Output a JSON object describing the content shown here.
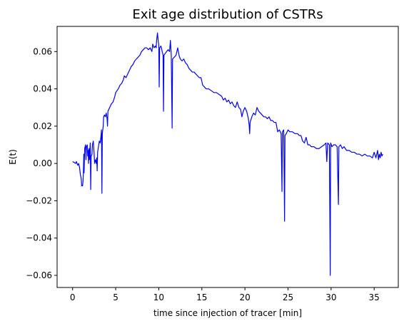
{
  "chart_data": {
    "type": "line",
    "title": "Exit age distribution of CSTRs",
    "xlabel": "time since injection of tracer [min]",
    "ylabel": "E(t)",
    "xlim": [
      -1.8,
      37.8
    ],
    "ylim": [
      -0.0665,
      0.0735
    ],
    "xticks": [
      0,
      5,
      10,
      15,
      20,
      25,
      30,
      35
    ],
    "yticks": [
      -0.06,
      -0.04,
      -0.02,
      0.0,
      0.02,
      0.04,
      0.06
    ],
    "xtick_labels": [
      "0",
      "5",
      "10",
      "15",
      "20",
      "25",
      "30",
      "35"
    ],
    "ytick_labels": [
      "−0.06",
      "−0.04",
      "−0.02",
      "0.00",
      "0.02",
      "0.04",
      "0.06"
    ],
    "grid": false,
    "series": [
      {
        "color": "#0000ff",
        "points": [
          [
            0.0,
            0.001
          ],
          [
            0.2,
            0.0005
          ],
          [
            0.35,
            0.0
          ],
          [
            0.45,
            0.001
          ],
          [
            0.55,
            -0.0005
          ],
          [
            0.6,
            -0.001
          ],
          [
            0.7,
            0.0
          ],
          [
            0.8,
            -0.002
          ],
          [
            0.9,
            -0.006
          ],
          [
            1.0,
            -0.008
          ],
          [
            1.05,
            -0.012
          ],
          [
            1.15,
            -0.012
          ],
          [
            1.2,
            -0.01
          ],
          [
            1.25,
            -0.005
          ],
          [
            1.3,
            0.005
          ],
          [
            1.33,
            -0.005
          ],
          [
            1.4,
            0.008
          ],
          [
            1.5,
            0.01
          ],
          [
            1.55,
            0.002
          ],
          [
            1.6,
            0.009
          ],
          [
            1.7,
            0.01
          ],
          [
            1.75,
            0.004
          ],
          [
            1.8,
            0.007
          ],
          [
            1.85,
            0.0
          ],
          [
            1.9,
            0.008
          ],
          [
            1.95,
            0.002
          ],
          [
            2.0,
            0.007
          ],
          [
            2.05,
            0.011
          ],
          [
            2.1,
            -0.014
          ],
          [
            2.15,
            0.004
          ],
          [
            2.25,
            0.005
          ],
          [
            2.3,
            0.01
          ],
          [
            2.4,
            0.012
          ],
          [
            2.5,
            0.005
          ],
          [
            2.55,
            0.0
          ],
          [
            2.65,
            0.002
          ],
          [
            2.75,
            0.0
          ],
          [
            2.8,
            0.003
          ],
          [
            2.85,
            -0.004
          ],
          [
            2.9,
            0.006
          ],
          [
            3.0,
            0.009
          ],
          [
            3.1,
            0.012
          ],
          [
            3.2,
            0.011
          ],
          [
            3.3,
            0.015
          ],
          [
            3.35,
            0.018
          ],
          [
            3.4,
            -0.016
          ],
          [
            3.45,
            0.016
          ],
          [
            3.55,
            0.02
          ],
          [
            3.6,
            0.025
          ],
          [
            3.7,
            0.026
          ],
          [
            3.8,
            0.025
          ],
          [
            3.9,
            0.027
          ],
          [
            4.0,
            0.024
          ],
          [
            4.05,
            0.02
          ],
          [
            4.1,
            0.028
          ],
          [
            4.3,
            0.03
          ],
          [
            4.5,
            0.032
          ],
          [
            4.7,
            0.033
          ],
          [
            4.9,
            0.036
          ],
          [
            5.0,
            0.038
          ],
          [
            5.3,
            0.04
          ],
          [
            5.5,
            0.042
          ],
          [
            5.7,
            0.043
          ],
          [
            5.9,
            0.045
          ],
          [
            6.0,
            0.047
          ],
          [
            6.2,
            0.046
          ],
          [
            6.4,
            0.048
          ],
          [
            6.6,
            0.05
          ],
          [
            6.8,
            0.052
          ],
          [
            7.0,
            0.053
          ],
          [
            7.2,
            0.055
          ],
          [
            7.4,
            0.056
          ],
          [
            7.6,
            0.057
          ],
          [
            7.8,
            0.058
          ],
          [
            8.0,
            0.06
          ],
          [
            8.2,
            0.061
          ],
          [
            8.4,
            0.062
          ],
          [
            8.6,
            0.062
          ],
          [
            8.8,
            0.061
          ],
          [
            9.0,
            0.062
          ],
          [
            9.2,
            0.06
          ],
          [
            9.3,
            0.064
          ],
          [
            9.45,
            0.062
          ],
          [
            9.6,
            0.063
          ],
          [
            9.7,
            0.062
          ],
          [
            9.75,
            0.066
          ],
          [
            9.85,
            0.07
          ],
          [
            9.95,
            0.065
          ],
          [
            10.0,
            0.064
          ],
          [
            10.05,
            0.041
          ],
          [
            10.1,
            0.062
          ],
          [
            10.25,
            0.063
          ],
          [
            10.4,
            0.06
          ],
          [
            10.5,
            0.058
          ],
          [
            10.55,
            0.028
          ],
          [
            10.6,
            0.058
          ],
          [
            10.75,
            0.059
          ],
          [
            10.9,
            0.06
          ],
          [
            11.1,
            0.061
          ],
          [
            11.25,
            0.06
          ],
          [
            11.35,
            0.066
          ],
          [
            11.45,
            0.058
          ],
          [
            11.55,
            0.019
          ],
          [
            11.6,
            0.056
          ],
          [
            11.8,
            0.057
          ],
          [
            12.0,
            0.058
          ],
          [
            12.2,
            0.062
          ],
          [
            12.35,
            0.058
          ],
          [
            12.5,
            0.056
          ],
          [
            12.7,
            0.055
          ],
          [
            12.9,
            0.056
          ],
          [
            13.1,
            0.054
          ],
          [
            13.3,
            0.053
          ],
          [
            13.5,
            0.051
          ],
          [
            13.7,
            0.05
          ],
          [
            13.9,
            0.049
          ],
          [
            14.1,
            0.049
          ],
          [
            14.3,
            0.048
          ],
          [
            14.5,
            0.047
          ],
          [
            14.7,
            0.046
          ],
          [
            14.9,
            0.046
          ],
          [
            15.1,
            0.042
          ],
          [
            15.3,
            0.041
          ],
          [
            15.5,
            0.04
          ],
          [
            15.8,
            0.04
          ],
          [
            16.1,
            0.039
          ],
          [
            16.4,
            0.038
          ],
          [
            16.7,
            0.038
          ],
          [
            17.0,
            0.037
          ],
          [
            17.3,
            0.036
          ],
          [
            17.5,
            0.034
          ],
          [
            17.7,
            0.035
          ],
          [
            17.9,
            0.033
          ],
          [
            18.1,
            0.034
          ],
          [
            18.3,
            0.032
          ],
          [
            18.5,
            0.033
          ],
          [
            18.7,
            0.031
          ],
          [
            18.9,
            0.03
          ],
          [
            19.1,
            0.033
          ],
          [
            19.3,
            0.03
          ],
          [
            19.5,
            0.029
          ],
          [
            19.65,
            0.025
          ],
          [
            19.8,
            0.028
          ],
          [
            20.0,
            0.03
          ],
          [
            20.2,
            0.028
          ],
          [
            20.4,
            0.024
          ],
          [
            20.5,
            0.02
          ],
          [
            20.55,
            0.016
          ],
          [
            20.6,
            0.022
          ],
          [
            20.8,
            0.025
          ],
          [
            21.0,
            0.027
          ],
          [
            21.2,
            0.026
          ],
          [
            21.4,
            0.03
          ],
          [
            21.6,
            0.028
          ],
          [
            21.8,
            0.027
          ],
          [
            22.0,
            0.026
          ],
          [
            22.2,
            0.025
          ],
          [
            22.4,
            0.025
          ],
          [
            22.6,
            0.024
          ],
          [
            22.8,
            0.025
          ],
          [
            23.0,
            0.023
          ],
          [
            23.2,
            0.023
          ],
          [
            23.4,
            0.022
          ],
          [
            23.6,
            0.022
          ],
          [
            23.8,
            0.017
          ],
          [
            24.0,
            0.018
          ],
          [
            24.2,
            0.016
          ],
          [
            24.3,
            -0.015
          ],
          [
            24.35,
            0.017
          ],
          [
            24.5,
            0.018
          ],
          [
            24.6,
            -0.031
          ],
          [
            24.65,
            0.015
          ],
          [
            24.8,
            0.016
          ],
          [
            25.0,
            0.018
          ],
          [
            25.2,
            0.017
          ],
          [
            25.5,
            0.017
          ],
          [
            25.8,
            0.016
          ],
          [
            26.1,
            0.016
          ],
          [
            26.3,
            0.015
          ],
          [
            26.5,
            0.015
          ],
          [
            26.7,
            0.012
          ],
          [
            26.9,
            0.011
          ],
          [
            27.1,
            0.014
          ],
          [
            27.3,
            0.01
          ],
          [
            27.5,
            0.01
          ],
          [
            27.7,
            0.009
          ],
          [
            28.0,
            0.009
          ],
          [
            28.3,
            0.008
          ],
          [
            28.6,
            0.008
          ],
          [
            28.9,
            0.009
          ],
          [
            29.2,
            0.01
          ],
          [
            29.4,
            0.011
          ],
          [
            29.5,
            0.001
          ],
          [
            29.6,
            0.011
          ],
          [
            29.8,
            0.01
          ],
          [
            29.9,
            -0.06
          ],
          [
            29.95,
            0.011
          ],
          [
            30.1,
            0.009
          ],
          [
            30.3,
            0.01
          ],
          [
            30.5,
            0.01
          ],
          [
            30.7,
            0.009
          ],
          [
            30.85,
            -0.022
          ],
          [
            30.9,
            0.009
          ],
          [
            31.1,
            0.01
          ],
          [
            31.3,
            0.008
          ],
          [
            31.5,
            0.009
          ],
          [
            31.8,
            0.007
          ],
          [
            32.1,
            0.007
          ],
          [
            32.4,
            0.006
          ],
          [
            32.7,
            0.006
          ],
          [
            33.0,
            0.005
          ],
          [
            33.3,
            0.005
          ],
          [
            33.6,
            0.004
          ],
          [
            33.9,
            0.005
          ],
          [
            34.2,
            0.004
          ],
          [
            34.5,
            0.004
          ],
          [
            34.8,
            0.003
          ],
          [
            35.0,
            0.006
          ],
          [
            35.2,
            0.003
          ],
          [
            35.4,
            0.007
          ],
          [
            35.5,
            0.002
          ],
          [
            35.6,
            0.005
          ],
          [
            35.7,
            0.003
          ],
          [
            35.8,
            0.006
          ],
          [
            35.9,
            0.004
          ],
          [
            36.0,
            0.005
          ]
        ]
      }
    ]
  }
}
